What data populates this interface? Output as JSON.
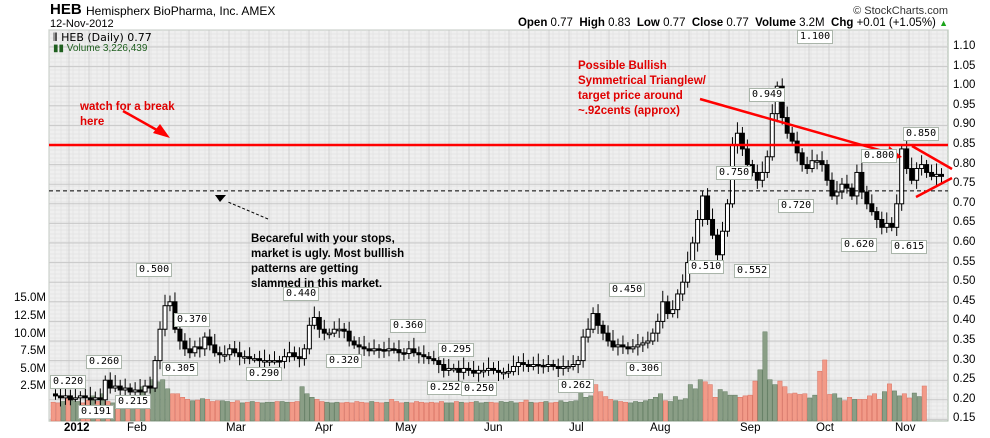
{
  "header": {
    "symbol": "HEB",
    "company": "Hemispherx BioPharma, Inc. AMEX",
    "date": "12-Nov-2012",
    "brand": "© StockCharts.com",
    "quote": {
      "open_label": "Open",
      "open": "0.77",
      "high_label": "High",
      "high": "0.83",
      "low_label": "Low",
      "low": "0.77",
      "close_label": "Close",
      "close": "0.77",
      "volume_label": "Volume",
      "volume": "3.2M",
      "chg_label": "Chg",
      "chg": "+0.01 (+1.05%)",
      "chg_arrow": "▲"
    }
  },
  "legend": {
    "price": "HEB (Daily) 0.77",
    "volume": "Volume 3,226,439"
  },
  "annotations": {
    "watch": [
      "watch for a break",
      "here"
    ],
    "bullish": [
      "Possible Bullish",
      "Symmetrical Trianglew/",
      "target price around",
      "~.92cents (approx)"
    ],
    "careful": [
      "Becareful with your stops,",
      "market is ugly. Most bulllish",
      "patterns are getting",
      "slammed in this market."
    ]
  },
  "colors": {
    "grid_bg": "#efefef",
    "grid_major": "#c8c8c8",
    "grid_minor": "#dcdcdc",
    "annotation_red": "#ff0000",
    "volume_up": "#8a9e86",
    "volume_down": "#f29a88",
    "candle": "#000000"
  },
  "chart_data": {
    "type": "candlestick",
    "title": "HEB Hemispherx BioPharma, Inc. AMEX (Daily)",
    "subtitle": "12-Nov-2012",
    "x_tick_labels": [
      "2012",
      "Feb",
      "Mar",
      "Apr",
      "May",
      "Jun",
      "Jul",
      "Aug",
      "Sep",
      "Oct",
      "Nov"
    ],
    "y_tick_labels": [
      "1.10",
      "1.05",
      "1.00",
      "0.95",
      "0.90",
      "0.85",
      "0.80",
      "0.75",
      "0.70",
      "0.65",
      "0.60",
      "0.55",
      "0.50",
      "0.45",
      "0.40",
      "0.35",
      "0.30",
      "0.25",
      "0.20",
      "0.15"
    ],
    "volume_tick_labels": [
      "15.0M",
      "12.5M",
      "10.0M",
      "7.5M",
      "5.0M",
      "2.5M"
    ],
    "ylim": [
      0.145,
      1.14
    ],
    "volume_ylim": [
      0,
      17.5
    ],
    "grid": true,
    "labeled_points": [
      {
        "label": "0.220",
        "date": "early Jan",
        "value": 0.22,
        "type": "high"
      },
      {
        "label": "0.191",
        "date": "mid Jan",
        "value": 0.191,
        "type": "low"
      },
      {
        "label": "0.260",
        "date": "mid Jan",
        "value": 0.26,
        "type": "high"
      },
      {
        "label": "0.215",
        "date": "late Jan",
        "value": 0.215,
        "type": "low"
      },
      {
        "label": "0.500",
        "date": "late Jan",
        "value": 0.5,
        "type": "high"
      },
      {
        "label": "0.370",
        "date": "mid Feb",
        "value": 0.37,
        "type": "high"
      },
      {
        "label": "0.305",
        "date": "mid Feb",
        "value": 0.305,
        "type": "low"
      },
      {
        "label": "0.290",
        "date": "mid Mar",
        "value": 0.29,
        "type": "low"
      },
      {
        "label": "0.440",
        "date": "late Mar",
        "value": 0.44,
        "type": "high"
      },
      {
        "label": "0.320",
        "date": "early Apr",
        "value": 0.32,
        "type": "low"
      },
      {
        "label": "0.360",
        "date": "late Apr",
        "value": 0.36,
        "type": "high"
      },
      {
        "label": "0.295",
        "date": "mid May",
        "value": 0.295,
        "type": "high"
      },
      {
        "label": "0.252",
        "date": "mid May",
        "value": 0.252,
        "type": "low"
      },
      {
        "label": "0.250",
        "date": "late May",
        "value": 0.25,
        "type": "low"
      },
      {
        "label": "0.262",
        "date": "late Jun",
        "value": 0.262,
        "type": "low"
      },
      {
        "label": "0.450",
        "date": "mid Jul",
        "value": 0.45,
        "type": "high"
      },
      {
        "label": "0.306",
        "date": "late Jul",
        "value": 0.306,
        "type": "low"
      },
      {
        "label": "0.510",
        "date": "mid Aug",
        "value": 0.51,
        "type": "high"
      },
      {
        "label": "0.750",
        "date": "late Aug",
        "value": 0.75,
        "type": "high"
      },
      {
        "label": "0.552",
        "date": "late Aug",
        "value": 0.552,
        "type": "low"
      },
      {
        "label": "0.949",
        "date": "early Sep",
        "value": 0.949,
        "type": "high"
      },
      {
        "label": "0.720",
        "date": "mid Sep",
        "value": 0.72,
        "type": "low"
      },
      {
        "label": "1.100",
        "date": "late Sep",
        "value": 1.1,
        "type": "high"
      },
      {
        "label": "0.620",
        "date": "mid Oct",
        "value": 0.62,
        "type": "low"
      },
      {
        "label": "0.800",
        "date": "mid Oct",
        "value": 0.8,
        "type": "high"
      },
      {
        "label": "0.615",
        "date": "late Oct",
        "value": 0.615,
        "type": "low"
      },
      {
        "label": "0.850",
        "date": "early Nov",
        "value": 0.85,
        "type": "high"
      }
    ],
    "price_path": [
      [
        0.215,
        0.21
      ],
      [
        0.21,
        0.205
      ],
      [
        0.205,
        0.21
      ],
      [
        0.21,
        0.2
      ],
      [
        0.205,
        0.205
      ],
      [
        0.205,
        0.21
      ],
      [
        0.21,
        0.205
      ],
      [
        0.205,
        0.2
      ],
      [
        0.2,
        0.205
      ],
      [
        0.205,
        0.2
      ],
      [
        0.2,
        0.25
      ],
      [
        0.25,
        0.23
      ],
      [
        0.23,
        0.235
      ],
      [
        0.235,
        0.225
      ],
      [
        0.225,
        0.23
      ],
      [
        0.23,
        0.22
      ],
      [
        0.22,
        0.225
      ],
      [
        0.225,
        0.22
      ],
      [
        0.22,
        0.235
      ],
      [
        0.235,
        0.23
      ],
      [
        0.23,
        0.3
      ],
      [
        0.3,
        0.38
      ],
      [
        0.38,
        0.44
      ],
      [
        0.44,
        0.45
      ],
      [
        0.45,
        0.38
      ],
      [
        0.38,
        0.35
      ],
      [
        0.35,
        0.33
      ],
      [
        0.33,
        0.32
      ],
      [
        0.32,
        0.335
      ],
      [
        0.335,
        0.33
      ],
      [
        0.33,
        0.36
      ],
      [
        0.36,
        0.34
      ],
      [
        0.34,
        0.32
      ],
      [
        0.32,
        0.315
      ],
      [
        0.315,
        0.315
      ],
      [
        0.315,
        0.33
      ],
      [
        0.33,
        0.32
      ],
      [
        0.32,
        0.31
      ],
      [
        0.31,
        0.31
      ],
      [
        0.31,
        0.305
      ],
      [
        0.305,
        0.305
      ],
      [
        0.305,
        0.3
      ],
      [
        0.3,
        0.3
      ],
      [
        0.3,
        0.3
      ],
      [
        0.3,
        0.3
      ],
      [
        0.3,
        0.298
      ],
      [
        0.298,
        0.31
      ],
      [
        0.31,
        0.32
      ],
      [
        0.32,
        0.31
      ],
      [
        0.31,
        0.305
      ],
      [
        0.305,
        0.33
      ],
      [
        0.33,
        0.39
      ],
      [
        0.39,
        0.41
      ],
      [
        0.41,
        0.38
      ],
      [
        0.38,
        0.37
      ],
      [
        0.37,
        0.37
      ],
      [
        0.37,
        0.38
      ],
      [
        0.38,
        0.38
      ],
      [
        0.38,
        0.375
      ],
      [
        0.375,
        0.35
      ],
      [
        0.35,
        0.34
      ],
      [
        0.34,
        0.335
      ],
      [
        0.335,
        0.33
      ],
      [
        0.33,
        0.325
      ],
      [
        0.325,
        0.33
      ],
      [
        0.33,
        0.328
      ],
      [
        0.328,
        0.325
      ],
      [
        0.325,
        0.33
      ],
      [
        0.33,
        0.328
      ],
      [
        0.328,
        0.32
      ],
      [
        0.32,
        0.318
      ],
      [
        0.318,
        0.33
      ],
      [
        0.33,
        0.32
      ],
      [
        0.32,
        0.315
      ],
      [
        0.315,
        0.31
      ],
      [
        0.31,
        0.305
      ],
      [
        0.305,
        0.3
      ],
      [
        0.3,
        0.29
      ],
      [
        0.29,
        0.275
      ],
      [
        0.275,
        0.28
      ],
      [
        0.28,
        0.28
      ],
      [
        0.28,
        0.27
      ],
      [
        0.27,
        0.28
      ],
      [
        0.28,
        0.275
      ],
      [
        0.275,
        0.268
      ],
      [
        0.268,
        0.275
      ],
      [
        0.275,
        0.275
      ],
      [
        0.275,
        0.28
      ],
      [
        0.28,
        0.275
      ],
      [
        0.275,
        0.27
      ],
      [
        0.27,
        0.27
      ],
      [
        0.27,
        0.272
      ],
      [
        0.272,
        0.285
      ],
      [
        0.285,
        0.295
      ],
      [
        0.295,
        0.29
      ],
      [
        0.29,
        0.285
      ],
      [
        0.285,
        0.29
      ],
      [
        0.29,
        0.288
      ],
      [
        0.288,
        0.285
      ],
      [
        0.285,
        0.29
      ],
      [
        0.29,
        0.285
      ],
      [
        0.285,
        0.28
      ],
      [
        0.28,
        0.285
      ],
      [
        0.285,
        0.285
      ],
      [
        0.285,
        0.29
      ],
      [
        0.29,
        0.3
      ],
      [
        0.3,
        0.36
      ],
      [
        0.36,
        0.38
      ],
      [
        0.38,
        0.42
      ],
      [
        0.42,
        0.39
      ],
      [
        0.39,
        0.37
      ],
      [
        0.37,
        0.35
      ],
      [
        0.35,
        0.335
      ],
      [
        0.335,
        0.34
      ],
      [
        0.34,
        0.335
      ],
      [
        0.335,
        0.33
      ],
      [
        0.33,
        0.335
      ],
      [
        0.335,
        0.34
      ],
      [
        0.34,
        0.345
      ],
      [
        0.345,
        0.35
      ],
      [
        0.35,
        0.37
      ],
      [
        0.37,
        0.4
      ],
      [
        0.4,
        0.45
      ],
      [
        0.45,
        0.42
      ],
      [
        0.42,
        0.43
      ],
      [
        0.43,
        0.47
      ],
      [
        0.47,
        0.5
      ],
      [
        0.5,
        0.55
      ],
      [
        0.55,
        0.6
      ],
      [
        0.6,
        0.66
      ],
      [
        0.66,
        0.72
      ],
      [
        0.72,
        0.66
      ],
      [
        0.66,
        0.62
      ],
      [
        0.62,
        0.57
      ],
      [
        0.57,
        0.63
      ],
      [
        0.63,
        0.7
      ],
      [
        0.7,
        0.85
      ],
      [
        0.85,
        0.88
      ],
      [
        0.88,
        0.84
      ],
      [
        0.84,
        0.8
      ],
      [
        0.8,
        0.78
      ],
      [
        0.78,
        0.76
      ],
      [
        0.76,
        0.78
      ],
      [
        0.78,
        0.82
      ],
      [
        0.82,
        0.93
      ],
      [
        0.93,
        1.0
      ],
      [
        1.0,
        0.92
      ],
      [
        0.92,
        0.88
      ],
      [
        0.88,
        0.86
      ],
      [
        0.86,
        0.83
      ],
      [
        0.83,
        0.8
      ],
      [
        0.8,
        0.79
      ],
      [
        0.79,
        0.81
      ],
      [
        0.81,
        0.81
      ],
      [
        0.81,
        0.8
      ],
      [
        0.8,
        0.76
      ],
      [
        0.76,
        0.72
      ],
      [
        0.72,
        0.73
      ],
      [
        0.73,
        0.75
      ],
      [
        0.75,
        0.74
      ],
      [
        0.74,
        0.72
      ],
      [
        0.72,
        0.78
      ],
      [
        0.78,
        0.73
      ],
      [
        0.73,
        0.7
      ],
      [
        0.7,
        0.68
      ],
      [
        0.68,
        0.66
      ],
      [
        0.66,
        0.64
      ],
      [
        0.64,
        0.65
      ],
      [
        0.65,
        0.64
      ],
      [
        0.64,
        0.7
      ],
      [
        0.7,
        0.84
      ],
      [
        0.84,
        0.79
      ],
      [
        0.79,
        0.76
      ],
      [
        0.76,
        0.79
      ],
      [
        0.79,
        0.8
      ],
      [
        0.8,
        0.78
      ],
      [
        0.78,
        0.77
      ],
      [
        0.77,
        0.775
      ],
      [
        0.775,
        0.77
      ]
    ],
    "volume_path": [
      0.4,
      0.3,
      0.5,
      0.9,
      0.6,
      0.5,
      0.3,
      0.7,
      1.3,
      0.5,
      1.6,
      0.5,
      0.3,
      0.6,
      0.4,
      0.5,
      0.3,
      0.4,
      2.6,
      0.5,
      3.6,
      3.3,
      3.6,
      2.3,
      1.6,
      1.6,
      1.1,
      0.8,
      0.6,
      0.7,
      0.9,
      0.8,
      0.5,
      0.6,
      0.6,
      0.5,
      0.4,
      0.6,
      0.3,
      0.4,
      0.5,
      0.4,
      0.3,
      0.4,
      0.4,
      0.5,
      0.5,
      0.4,
      0.4,
      0.5,
      2.6,
      1.6,
      1.1,
      0.8,
      0.5,
      0.4,
      0.3,
      0.4,
      0.3,
      0.4,
      0.3,
      0.5,
      0.4,
      0.3,
      0.5,
      0.4,
      0.3,
      0.4,
      0.8,
      0.5,
      0.3,
      0.4,
      0.3,
      0.5,
      0.4,
      0.3,
      0.4,
      0.3,
      0.5,
      0.3,
      0.3,
      0.5,
      0.4,
      0.3,
      0.4,
      0.5,
      0.3,
      0.4,
      0.4,
      0.3,
      0.5,
      0.4,
      0.5,
      0.3,
      0.4,
      0.7,
      0.4,
      0.3,
      0.4,
      0.5,
      0.3,
      0.4,
      0.6,
      0.4,
      0.5,
      0.6,
      3.4,
      1.1,
      1.3,
      2.9,
      1.9,
      1.2,
      0.8,
      0.6,
      0.5,
      0.4,
      0.3,
      0.5,
      0.4,
      0.6,
      0.8,
      1.1,
      1.6,
      0.6,
      0.5,
      1.2,
      0.7,
      0.9,
      2.9,
      2.3,
      3.6,
      3.3,
      2.9,
      1.1,
      2.2,
      1.9,
      1.4,
      1.4,
      1.1,
      1.3,
      1.4,
      3.4,
      5.0,
      10.4,
      3.6,
      2.9,
      3.4,
      2.6,
      1.6,
      1.7,
      1.5,
      1.6,
      1.0,
      1.4,
      4.8,
      6.4,
      1.5,
      1.6,
      1.0,
      0.6,
      1.1,
      0.8,
      0.8,
      0.8,
      1.3,
      1.6,
      0.8,
      1.9,
      3.0,
      2.0,
      1.3,
      1.6,
      1.0,
      1.7,
      1.2,
      2.7
    ]
  }
}
